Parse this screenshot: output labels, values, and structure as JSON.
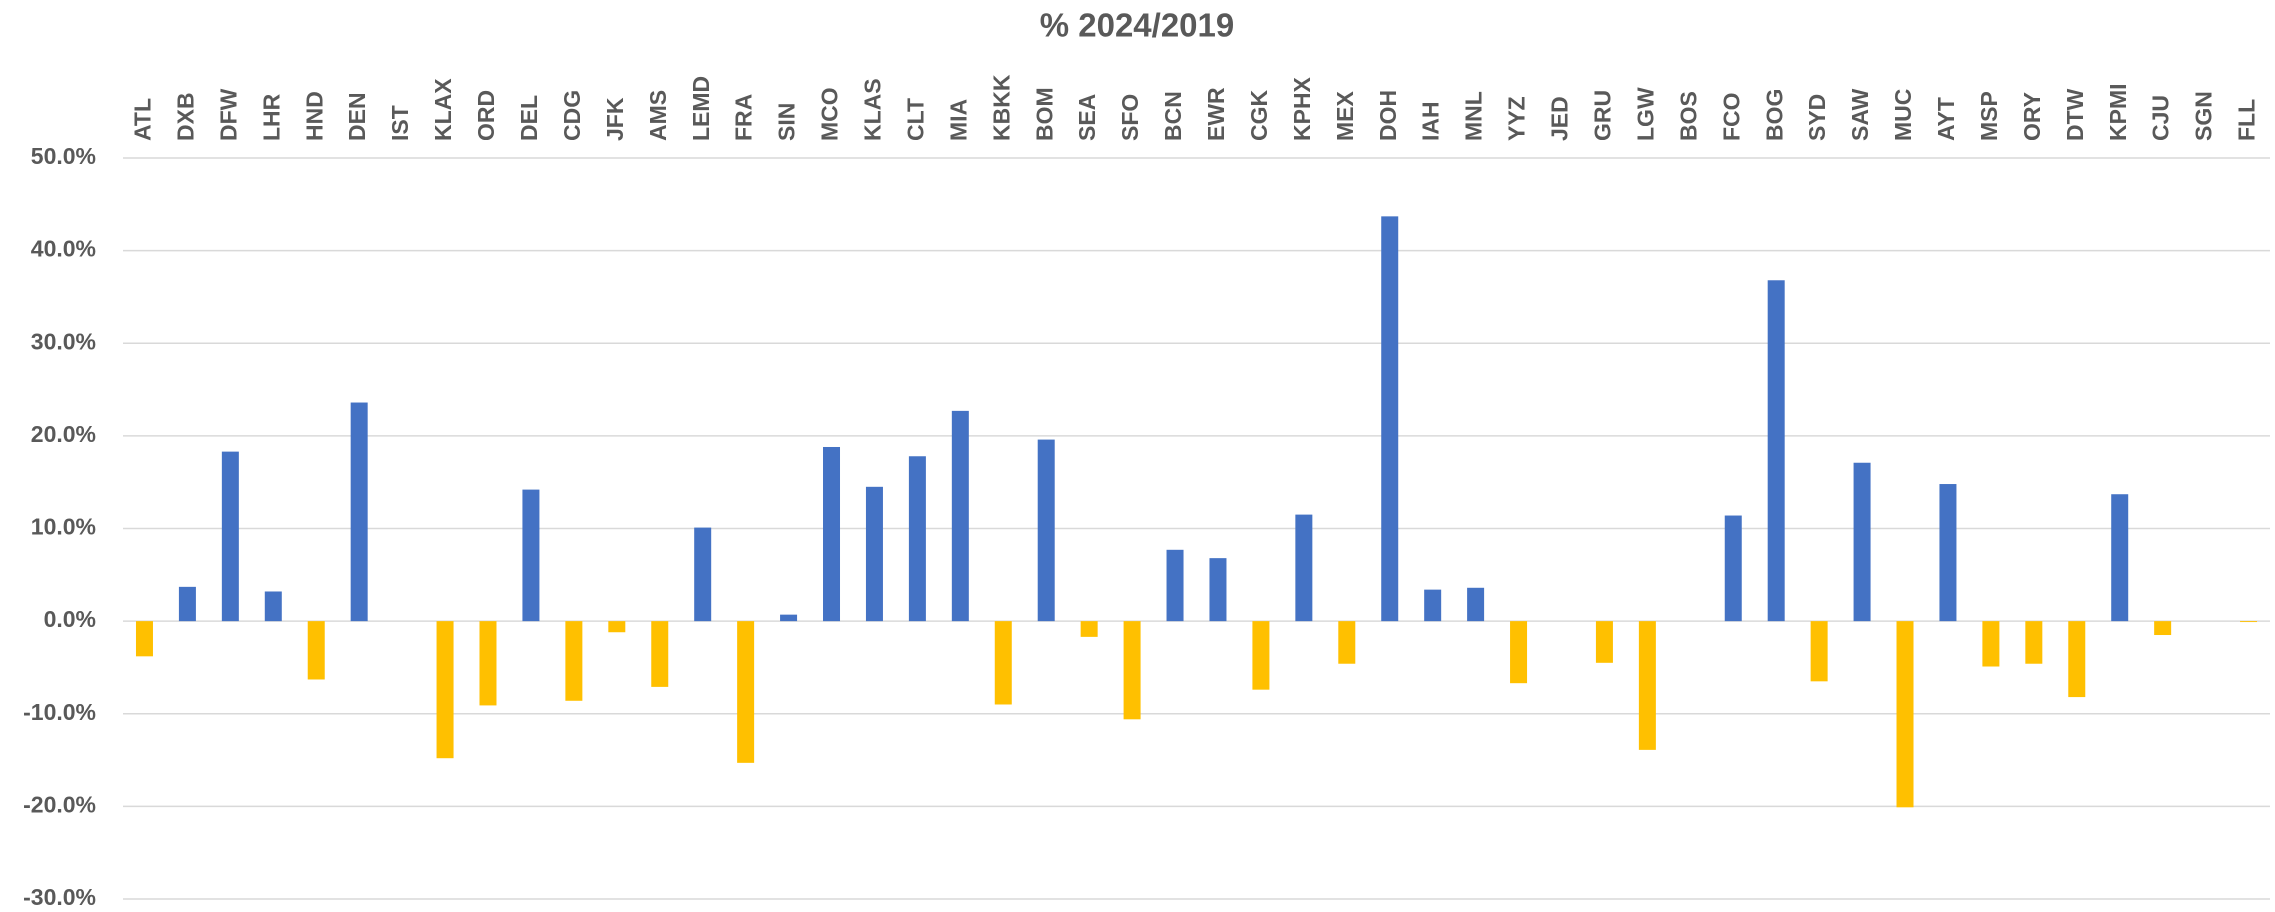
{
  "chart_data": {
    "type": "bar",
    "title": "% 2024/2019",
    "categories": [
      "ATL",
      "DXB",
      "DFW",
      "LHR",
      "HND",
      "DEN",
      "IST",
      "KLAX",
      "ORD",
      "DEL",
      "CDG",
      "JFK",
      "AMS",
      "LEMD",
      "FRA",
      "SIN",
      "MCO",
      "KLAS",
      "CLT",
      "MIA",
      "KBKK",
      "BOM",
      "SEA",
      "SFO",
      "BCN",
      "EWR",
      "CGK",
      "KPHX",
      "MEX",
      "DOH",
      "IAH",
      "MNL",
      "YYZ",
      "JED",
      "GRU",
      "LGW",
      "BOS",
      "FCO",
      "BOG",
      "SYD",
      "SAW",
      "MUC",
      "AYT",
      "MSP",
      "ORY",
      "DTW",
      "KPMI",
      "CJU",
      "SGN",
      "FLL"
    ],
    "values": [
      -3.8,
      3.7,
      18.3,
      3.2,
      -6.3,
      23.6,
      0,
      -14.8,
      -9.1,
      14.2,
      -8.6,
      -1.2,
      -7.1,
      10.1,
      -15.3,
      0.7,
      18.8,
      14.5,
      17.8,
      22.7,
      -9.0,
      19.6,
      -1.7,
      -10.6,
      7.7,
      6.8,
      -7.4,
      11.5,
      -4.6,
      43.7,
      3.4,
      3.6,
      -6.7,
      0,
      -4.5,
      -13.9,
      0,
      11.4,
      36.8,
      -6.5,
      17.1,
      -20.1,
      14.8,
      -4.9,
      -4.6,
      -8.2,
      13.7,
      -1.5,
      0,
      -0.1
    ],
    "positive_color": "#4472c4",
    "negative_color": "#ffc000",
    "ylim": [
      -30,
      50
    ],
    "yticks": [
      {
        "value": -30,
        "label": "-30.0%"
      },
      {
        "value": -20,
        "label": "-20.0%"
      },
      {
        "value": -10,
        "label": "-10.0%"
      },
      {
        "value": 0,
        "label": "0.0%"
      },
      {
        "value": 10,
        "label": "10.0%"
      },
      {
        "value": 20,
        "label": "20.0%"
      },
      {
        "value": 30,
        "label": "30.0%"
      },
      {
        "value": 40,
        "label": "40.0%"
      },
      {
        "value": 50,
        "label": "50.0%"
      }
    ],
    "grid": true
  }
}
